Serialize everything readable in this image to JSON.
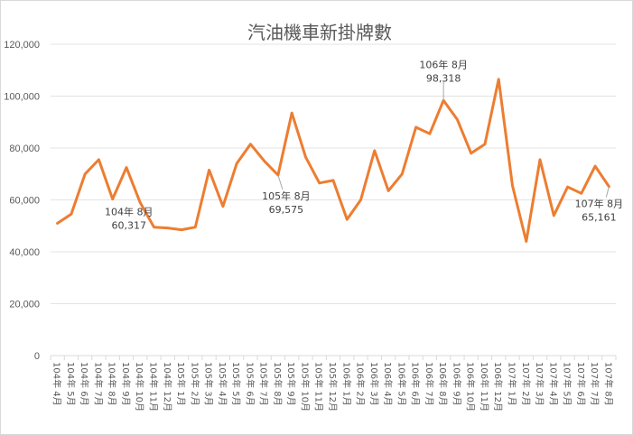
{
  "chart_data": {
    "type": "line",
    "title": "汽油機車新掛牌數",
    "xlabel": "",
    "ylabel": "",
    "ylim": [
      0,
      120000
    ],
    "yticks": [
      "0",
      "20,000",
      "40,000",
      "60,000",
      "80,000",
      "100,000",
      "120,000"
    ],
    "grid": true,
    "legend": "none",
    "line_color": "#ed7d31",
    "categories": [
      "104年 4月",
      "104年 5月",
      "104年 6月",
      "104年 7月",
      "104年 8月",
      "104年 9月",
      "104年 10月",
      "104年 11月",
      "104年 12月",
      "105年 1月",
      "105年 2月",
      "105年 3月",
      "105年 4月",
      "105年 5月",
      "105年 6月",
      "105年 7月",
      "105年 8月",
      "105年 9月",
      "105年 10月",
      "105年 11月",
      "105年 12月",
      "106年 1月",
      "106年 2月",
      "106年 3月",
      "106年 4月",
      "106年 5月",
      "106年 6月",
      "106年 7月",
      "106年 8月",
      "106年 9月",
      "106年 10月",
      "106年 11月",
      "106年 12月",
      "107年 1月",
      "107年 2月",
      "107年 3月",
      "107年 4月",
      "107年 5月",
      "107年 6月",
      "107年 7月",
      "107年 8月"
    ],
    "values": [
      51000,
      54500,
      70000,
      75500,
      60317,
      72500,
      59000,
      49500,
      49200,
      48500,
      49500,
      71500,
      57500,
      74000,
      81500,
      75000,
      69575,
      93500,
      76500,
      66500,
      67500,
      52500,
      60000,
      79000,
      63500,
      70000,
      88000,
      85500,
      98318,
      91000,
      78000,
      81500,
      106500,
      65500,
      44000,
      75500,
      54000,
      65000,
      62500,
      73000,
      65161
    ],
    "annotations": [
      {
        "index": 4,
        "label": "104年 8月",
        "value": "60,317"
      },
      {
        "index": 16,
        "label": "105年 8月",
        "value": "69,575"
      },
      {
        "index": 28,
        "label": "106年 8月",
        "value": "98,318"
      },
      {
        "index": 40,
        "label": "107年 8月",
        "value": "65,161"
      }
    ]
  }
}
